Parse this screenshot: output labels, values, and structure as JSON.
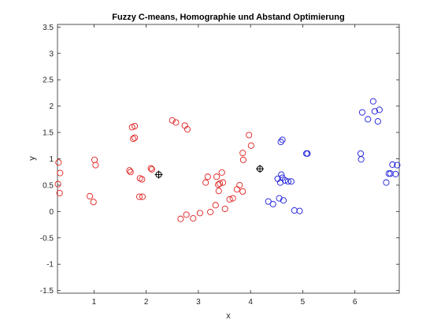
{
  "chart_data": {
    "type": "scatter",
    "title": "Fuzzy C-means, Homographie und Abstand Optimierung",
    "xlabel": "x",
    "ylabel": "y",
    "xlim": [
      0.3,
      6.85
    ],
    "ylim": [
      -1.55,
      3.55
    ],
    "x_ticks": [
      1,
      2,
      3,
      4,
      5,
      6
    ],
    "y_ticks": [
      -1.5,
      -1,
      -0.5,
      0,
      0.5,
      1,
      1.5,
      2,
      2.5,
      3,
      3.5
    ],
    "grid": false,
    "legend": "none",
    "box": true,
    "marker": "open-circle",
    "series": [
      {
        "color": "#e02020",
        "points": [
          [
            0.32,
            0.93
          ],
          [
            0.35,
            0.73
          ],
          [
            0.31,
            0.52
          ],
          [
            0.34,
            0.35
          ],
          [
            0.92,
            0.29
          ],
          [
            0.99,
            0.18
          ],
          [
            1.01,
            0.98
          ],
          [
            1.03,
            0.88
          ],
          [
            1.68,
            0.78
          ],
          [
            1.7,
            0.75
          ],
          [
            1.73,
            1.6
          ],
          [
            1.78,
            1.62
          ],
          [
            1.75,
            1.38
          ],
          [
            1.78,
            1.4
          ],
          [
            1.87,
            0.28
          ],
          [
            1.93,
            0.28
          ],
          [
            1.88,
            0.63
          ],
          [
            1.92,
            0.61
          ],
          [
            2.09,
            0.82
          ],
          [
            2.11,
            0.8
          ],
          [
            2.5,
            1.73
          ],
          [
            2.57,
            1.69
          ],
          [
            2.74,
            1.63
          ],
          [
            2.79,
            1.56
          ],
          [
            2.66,
            -0.14
          ],
          [
            2.77,
            -0.06
          ],
          [
            2.9,
            -0.13
          ],
          [
            3.03,
            -0.03
          ],
          [
            3.14,
            0.55
          ],
          [
            3.18,
            0.66
          ],
          [
            3.23,
            -0.01
          ],
          [
            3.33,
            0.12
          ],
          [
            3.35,
            0.66
          ],
          [
            3.38,
            0.51
          ],
          [
            3.41,
            0.53
          ],
          [
            3.45,
            0.74
          ],
          [
            3.47,
            0.55
          ],
          [
            3.39,
            0.39
          ],
          [
            3.51,
            0.05
          ],
          [
            3.6,
            0.23
          ],
          [
            3.66,
            0.25
          ],
          [
            3.74,
            0.42
          ],
          [
            3.79,
            0.5
          ],
          [
            3.85,
            0.38
          ],
          [
            3.85,
            1.11
          ],
          [
            3.86,
            0.98
          ],
          [
            3.97,
            1.45
          ],
          [
            4.01,
            1.25
          ]
        ]
      },
      {
        "color": "#1a1adc",
        "points": [
          [
            4.34,
            0.19
          ],
          [
            4.43,
            0.14
          ],
          [
            4.52,
            0.62
          ],
          [
            4.55,
            0.25
          ],
          [
            4.57,
            0.55
          ],
          [
            4.59,
            0.7
          ],
          [
            4.61,
            0.64
          ],
          [
            4.63,
            0.21
          ],
          [
            4.58,
            1.32
          ],
          [
            4.61,
            1.36
          ],
          [
            4.66,
            0.59
          ],
          [
            4.72,
            0.57
          ],
          [
            4.78,
            0.57
          ],
          [
            4.84,
            0.02
          ],
          [
            4.94,
            0.01
          ],
          [
            5.07,
            1.1
          ],
          [
            5.09,
            1.1
          ],
          [
            6.11,
            1.1
          ],
          [
            6.12,
            0.99
          ],
          [
            6.14,
            1.88
          ],
          [
            6.25,
            1.75
          ],
          [
            6.35,
            2.09
          ],
          [
            6.38,
            1.9
          ],
          [
            6.44,
            1.71
          ],
          [
            6.47,
            1.93
          ],
          [
            6.6,
            0.55
          ],
          [
            6.65,
            0.72
          ],
          [
            6.68,
            0.72
          ],
          [
            6.72,
            0.89
          ],
          [
            6.78,
            0.71
          ],
          [
            6.81,
            0.88
          ]
        ]
      }
    ],
    "centers": {
      "color": "#000000",
      "marker": "circle-plus",
      "points": [
        [
          2.24,
          0.7
        ],
        [
          4.18,
          0.81
        ]
      ]
    }
  }
}
